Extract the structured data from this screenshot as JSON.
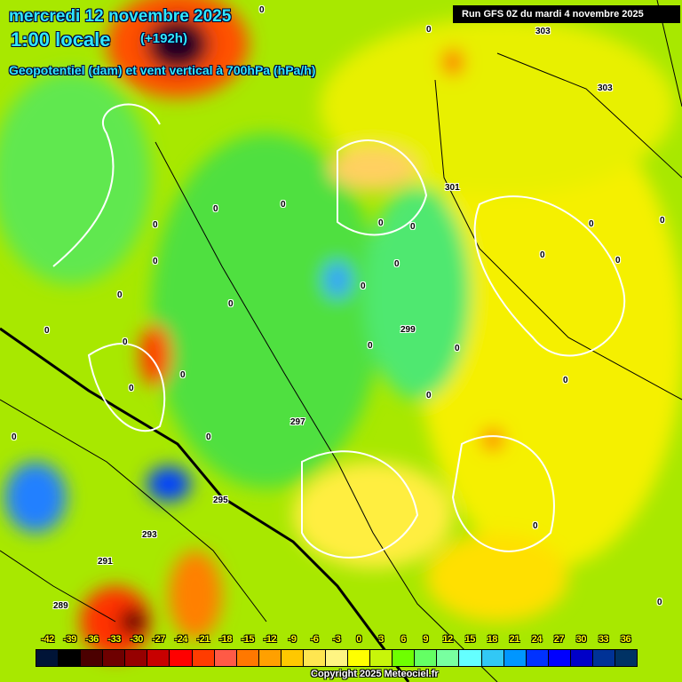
{
  "header": {
    "date": "mercredi 12 novembre 2025",
    "time": "1:00 locale",
    "lead": "(+192h)",
    "parameter": "Geopotentiel (dam) et vent vertical à 700hPa (hPa/h)",
    "run": "Run GFS 0Z du mardi 4 novembre 2025"
  },
  "legend": {
    "ticks": [
      "-42",
      "-39",
      "-36",
      "-33",
      "-30",
      "-27",
      "-24",
      "-21",
      "-18",
      "-15",
      "-12",
      "-9",
      "-6",
      "-3",
      "0",
      "3",
      "6",
      "9",
      "12",
      "15",
      "18",
      "21",
      "24",
      "27",
      "30",
      "33",
      "36"
    ],
    "colors": [
      "#001437",
      "#000000",
      "#4b0000",
      "#6e0000",
      "#960000",
      "#c80000",
      "#ff0000",
      "#ff3c00",
      "#ff5a46",
      "#ff7800",
      "#ffa000",
      "#ffc800",
      "#ffe650",
      "#fff582",
      "#ffff00",
      "#c8f50a",
      "#6eff00",
      "#64ff64",
      "#78ffa0",
      "#64ffff",
      "#32c8f5",
      "#0096ff",
      "#0032ff",
      "#0000ff",
      "#0000c8",
      "#003296",
      "#003264"
    ]
  },
  "contour_labels": [
    "303",
    "303",
    "301",
    "299",
    "297",
    "295",
    "293",
    "291",
    "289"
  ],
  "zero_labels": [
    "0",
    "0",
    "0",
    "0",
    "0",
    "0",
    "0",
    "0",
    "0",
    "0",
    "0",
    "0",
    "0",
    "0",
    "0",
    "0",
    "0",
    "0",
    "0",
    "0",
    "0",
    "0",
    "0",
    "0",
    "0",
    "0",
    "0",
    "0"
  ],
  "copyright": "Copyright 2025 Meteociel.fr"
}
